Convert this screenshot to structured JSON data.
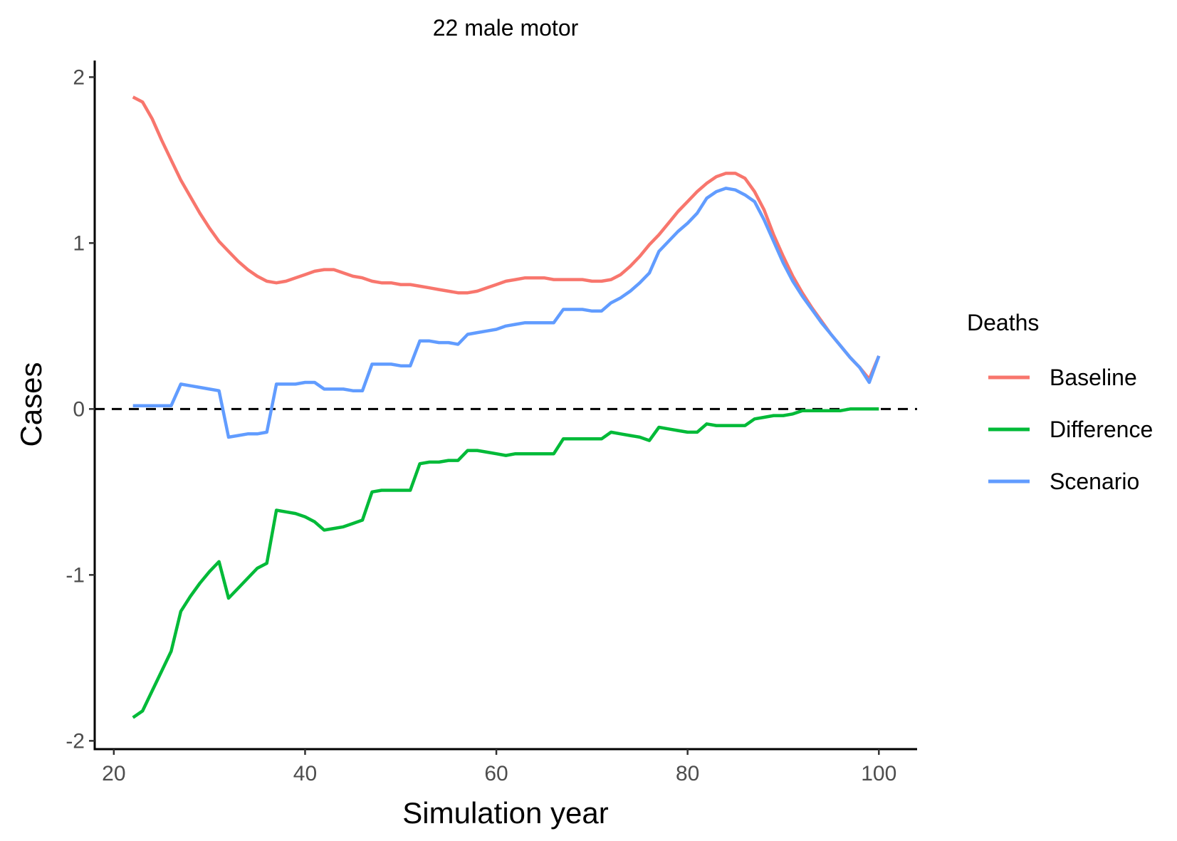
{
  "chart_data": {
    "type": "line",
    "title": "22 male motor",
    "xlabel": "Simulation year",
    "ylabel": "Cases",
    "xlim": [
      18,
      104
    ],
    "ylim": [
      -2.05,
      2.1
    ],
    "xticks": [
      20,
      40,
      60,
      80,
      100
    ],
    "yticks": [
      -2,
      -1,
      0,
      1,
      2
    ],
    "grid": false,
    "reference_line": {
      "y": 0,
      "style": "dashed",
      "color": "#000000"
    },
    "legend": {
      "title": "Deaths",
      "placement": "right"
    },
    "series": [
      {
        "name": "Baseline",
        "color": "#F8766D",
        "points": [
          [
            22,
            1.88
          ],
          [
            23,
            1.85
          ],
          [
            24,
            1.75
          ],
          [
            25,
            1.62
          ],
          [
            26,
            1.5
          ],
          [
            27,
            1.38
          ],
          [
            28,
            1.28
          ],
          [
            29,
            1.18
          ],
          [
            30,
            1.09
          ],
          [
            31,
            1.01
          ],
          [
            32,
            0.95
          ],
          [
            33,
            0.89
          ],
          [
            34,
            0.84
          ],
          [
            35,
            0.8
          ],
          [
            36,
            0.77
          ],
          [
            37,
            0.76
          ],
          [
            38,
            0.77
          ],
          [
            39,
            0.79
          ],
          [
            40,
            0.81
          ],
          [
            41,
            0.83
          ],
          [
            42,
            0.84
          ],
          [
            43,
            0.84
          ],
          [
            44,
            0.82
          ],
          [
            45,
            0.8
          ],
          [
            46,
            0.79
          ],
          [
            47,
            0.77
          ],
          [
            48,
            0.76
          ],
          [
            49,
            0.76
          ],
          [
            50,
            0.75
          ],
          [
            51,
            0.75
          ],
          [
            52,
            0.74
          ],
          [
            53,
            0.73
          ],
          [
            54,
            0.72
          ],
          [
            55,
            0.71
          ],
          [
            56,
            0.7
          ],
          [
            57,
            0.7
          ],
          [
            58,
            0.71
          ],
          [
            59,
            0.73
          ],
          [
            60,
            0.75
          ],
          [
            61,
            0.77
          ],
          [
            62,
            0.78
          ],
          [
            63,
            0.79
          ],
          [
            64,
            0.79
          ],
          [
            65,
            0.79
          ],
          [
            66,
            0.78
          ],
          [
            67,
            0.78
          ],
          [
            68,
            0.78
          ],
          [
            69,
            0.78
          ],
          [
            70,
            0.77
          ],
          [
            71,
            0.77
          ],
          [
            72,
            0.78
          ],
          [
            73,
            0.81
          ],
          [
            74,
            0.86
          ],
          [
            75,
            0.92
          ],
          [
            76,
            0.99
          ],
          [
            77,
            1.05
          ],
          [
            78,
            1.12
          ],
          [
            79,
            1.19
          ],
          [
            80,
            1.25
          ],
          [
            81,
            1.31
          ],
          [
            82,
            1.36
          ],
          [
            83,
            1.4
          ],
          [
            84,
            1.42
          ],
          [
            85,
            1.42
          ],
          [
            86,
            1.39
          ],
          [
            87,
            1.31
          ],
          [
            88,
            1.2
          ],
          [
            89,
            1.05
          ],
          [
            90,
            0.92
          ],
          [
            91,
            0.8
          ],
          [
            92,
            0.7
          ],
          [
            93,
            0.61
          ],
          [
            94,
            0.53
          ],
          [
            95,
            0.45
          ],
          [
            96,
            0.38
          ],
          [
            97,
            0.31
          ],
          [
            98,
            0.25
          ],
          [
            99,
            0.18
          ],
          [
            100,
            0.32
          ]
        ]
      },
      {
        "name": "Difference",
        "color": "#00BA38",
        "points": [
          [
            22,
            -1.86
          ],
          [
            23,
            -1.82
          ],
          [
            24,
            -1.7
          ],
          [
            25,
            -1.58
          ],
          [
            26,
            -1.46
          ],
          [
            27,
            -1.22
          ],
          [
            28,
            -1.13
          ],
          [
            29,
            -1.05
          ],
          [
            30,
            -0.98
          ],
          [
            31,
            -0.92
          ],
          [
            32,
            -1.14
          ],
          [
            33,
            -1.08
          ],
          [
            34,
            -1.02
          ],
          [
            35,
            -0.96
          ],
          [
            36,
            -0.93
          ],
          [
            37,
            -0.61
          ],
          [
            38,
            -0.62
          ],
          [
            39,
            -0.63
          ],
          [
            40,
            -0.65
          ],
          [
            41,
            -0.68
          ],
          [
            42,
            -0.73
          ],
          [
            43,
            -0.72
          ],
          [
            44,
            -0.71
          ],
          [
            45,
            -0.69
          ],
          [
            46,
            -0.67
          ],
          [
            47,
            -0.5
          ],
          [
            48,
            -0.49
          ],
          [
            49,
            -0.49
          ],
          [
            50,
            -0.49
          ],
          [
            51,
            -0.49
          ],
          [
            52,
            -0.33
          ],
          [
            53,
            -0.32
          ],
          [
            54,
            -0.32
          ],
          [
            55,
            -0.31
          ],
          [
            56,
            -0.31
          ],
          [
            57,
            -0.25
          ],
          [
            58,
            -0.25
          ],
          [
            59,
            -0.26
          ],
          [
            60,
            -0.27
          ],
          [
            61,
            -0.28
          ],
          [
            62,
            -0.27
          ],
          [
            63,
            -0.27
          ],
          [
            64,
            -0.27
          ],
          [
            65,
            -0.27
          ],
          [
            66,
            -0.27
          ],
          [
            67,
            -0.18
          ],
          [
            68,
            -0.18
          ],
          [
            69,
            -0.18
          ],
          [
            70,
            -0.18
          ],
          [
            71,
            -0.18
          ],
          [
            72,
            -0.14
          ],
          [
            73,
            -0.15
          ],
          [
            74,
            -0.16
          ],
          [
            75,
            -0.17
          ],
          [
            76,
            -0.19
          ],
          [
            77,
            -0.11
          ],
          [
            78,
            -0.12
          ],
          [
            79,
            -0.13
          ],
          [
            80,
            -0.14
          ],
          [
            81,
            -0.14
          ],
          [
            82,
            -0.09
          ],
          [
            83,
            -0.1
          ],
          [
            84,
            -0.1
          ],
          [
            85,
            -0.1
          ],
          [
            86,
            -0.1
          ],
          [
            87,
            -0.06
          ],
          [
            88,
            -0.05
          ],
          [
            89,
            -0.04
          ],
          [
            90,
            -0.04
          ],
          [
            91,
            -0.03
          ],
          [
            92,
            -0.01
          ],
          [
            93,
            -0.01
          ],
          [
            94,
            -0.01
          ],
          [
            95,
            -0.01
          ],
          [
            96,
            -0.01
          ],
          [
            97,
            0
          ],
          [
            98,
            0
          ],
          [
            99,
            0
          ],
          [
            100,
            0
          ]
        ]
      },
      {
        "name": "Scenario",
        "color": "#619CFF",
        "points": [
          [
            22,
            0.02
          ],
          [
            23,
            0.02
          ],
          [
            24,
            0.02
          ],
          [
            25,
            0.02
          ],
          [
            26,
            0.02
          ],
          [
            27,
            0.15
          ],
          [
            28,
            0.14
          ],
          [
            29,
            0.13
          ],
          [
            30,
            0.12
          ],
          [
            31,
            0.11
          ],
          [
            32,
            -0.17
          ],
          [
            33,
            -0.16
          ],
          [
            34,
            -0.15
          ],
          [
            35,
            -0.15
          ],
          [
            36,
            -0.14
          ],
          [
            37,
            0.15
          ],
          [
            38,
            0.15
          ],
          [
            39,
            0.15
          ],
          [
            40,
            0.16
          ],
          [
            41,
            0.16
          ],
          [
            42,
            0.12
          ],
          [
            43,
            0.12
          ],
          [
            44,
            0.12
          ],
          [
            45,
            0.11
          ],
          [
            46,
            0.11
          ],
          [
            47,
            0.27
          ],
          [
            48,
            0.27
          ],
          [
            49,
            0.27
          ],
          [
            50,
            0.26
          ],
          [
            51,
            0.26
          ],
          [
            52,
            0.41
          ],
          [
            53,
            0.41
          ],
          [
            54,
            0.4
          ],
          [
            55,
            0.4
          ],
          [
            56,
            0.39
          ],
          [
            57,
            0.45
          ],
          [
            58,
            0.46
          ],
          [
            59,
            0.47
          ],
          [
            60,
            0.48
          ],
          [
            61,
            0.5
          ],
          [
            62,
            0.51
          ],
          [
            63,
            0.52
          ],
          [
            64,
            0.52
          ],
          [
            65,
            0.52
          ],
          [
            66,
            0.52
          ],
          [
            67,
            0.6
          ],
          [
            68,
            0.6
          ],
          [
            69,
            0.6
          ],
          [
            70,
            0.59
          ],
          [
            71,
            0.59
          ],
          [
            72,
            0.64
          ],
          [
            73,
            0.67
          ],
          [
            74,
            0.71
          ],
          [
            75,
            0.76
          ],
          [
            76,
            0.82
          ],
          [
            77,
            0.95
          ],
          [
            78,
            1.01
          ],
          [
            79,
            1.07
          ],
          [
            80,
            1.12
          ],
          [
            81,
            1.18
          ],
          [
            82,
            1.27
          ],
          [
            83,
            1.31
          ],
          [
            84,
            1.33
          ],
          [
            85,
            1.32
          ],
          [
            86,
            1.29
          ],
          [
            87,
            1.25
          ],
          [
            88,
            1.14
          ],
          [
            89,
            1.01
          ],
          [
            90,
            0.88
          ],
          [
            91,
            0.77
          ],
          [
            92,
            0.68
          ],
          [
            93,
            0.6
          ],
          [
            94,
            0.52
          ],
          [
            95,
            0.45
          ],
          [
            96,
            0.38
          ],
          [
            97,
            0.31
          ],
          [
            98,
            0.25
          ],
          [
            99,
            0.16
          ],
          [
            100,
            0.32
          ]
        ]
      }
    ]
  }
}
